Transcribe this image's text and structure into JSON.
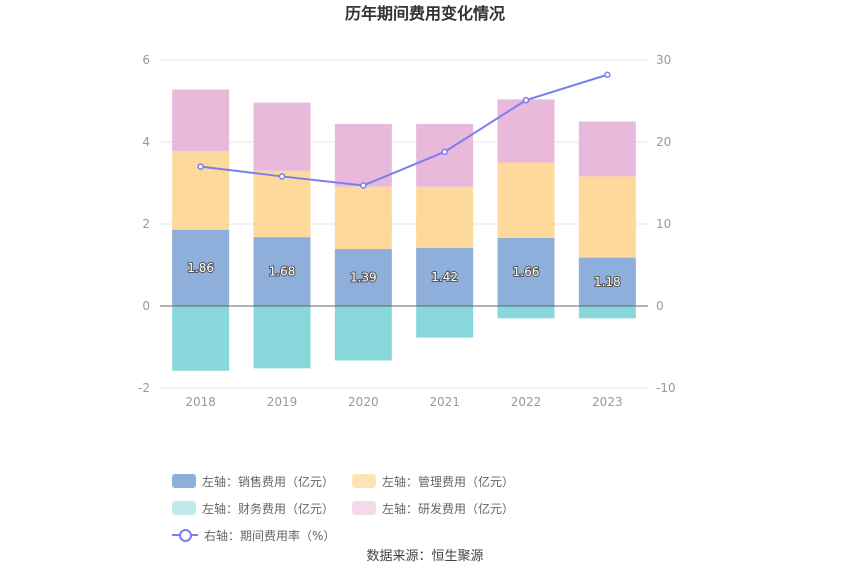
{
  "chart_data": {
    "type": "bar",
    "title": "历年期间费用变化情况",
    "categories": [
      "2018",
      "2019",
      "2020",
      "2021",
      "2022",
      "2023"
    ],
    "y_left": {
      "ticks": [
        -2,
        0,
        2,
        4,
        6
      ],
      "ylim": [
        -2,
        6
      ]
    },
    "y_right": {
      "ticks": [
        -10,
        0,
        10,
        20,
        30
      ],
      "ylim": [
        -10,
        30
      ]
    },
    "stacked": true,
    "series": [
      {
        "name": "左轴：销售费用（亿元）",
        "axis": "left",
        "type": "bar",
        "color": "#8eaedb",
        "values": [
          1.86,
          1.68,
          1.39,
          1.42,
          1.66,
          1.18
        ],
        "labels": [
          "1.86",
          "1.68",
          "1.39",
          "1.42",
          "1.66",
          "1.18"
        ]
      },
      {
        "name": "左轴：管理费用（亿元）",
        "axis": "left",
        "type": "bar",
        "color": "#fdd99b",
        "values": [
          1.92,
          1.62,
          1.52,
          1.49,
          1.84,
          1.98
        ]
      },
      {
        "name": "左轴：财务费用（亿元）",
        "axis": "left",
        "type": "bar",
        "color": "#88d7da",
        "values": [
          -1.58,
          -1.52,
          -1.33,
          -0.77,
          -0.3,
          -0.3
        ]
      },
      {
        "name": "左轴：研发费用（亿元）",
        "axis": "left",
        "type": "bar",
        "color": "#e8b9da",
        "values": [
          1.5,
          1.66,
          1.53,
          1.53,
          1.54,
          1.34
        ]
      },
      {
        "name": "右轴：期间费用率（%）",
        "axis": "right",
        "type": "line",
        "color": "#7b7ef0",
        "values": [
          17.0,
          15.8,
          14.7,
          18.8,
          25.1,
          28.2
        ]
      }
    ],
    "legend_position": "bottom",
    "grid": true
  },
  "legend": [
    {
      "label": "左轴：销售费用（亿元）",
      "color": "#8eaedb",
      "kind": "bar"
    },
    {
      "label": "左轴：管理费用（亿元）",
      "color": "#fde4b6",
      "kind": "bar"
    },
    {
      "label": "左轴：财务费用（亿元）",
      "color": "#bfeaeb",
      "kind": "bar"
    },
    {
      "label": "左轴：研发费用（亿元）",
      "color": "#f3daea",
      "kind": "bar"
    },
    {
      "label": "右轴：期间费用率（%）",
      "color": "#7b7ef0",
      "kind": "line"
    }
  ],
  "source": "数据来源：恒生聚源"
}
